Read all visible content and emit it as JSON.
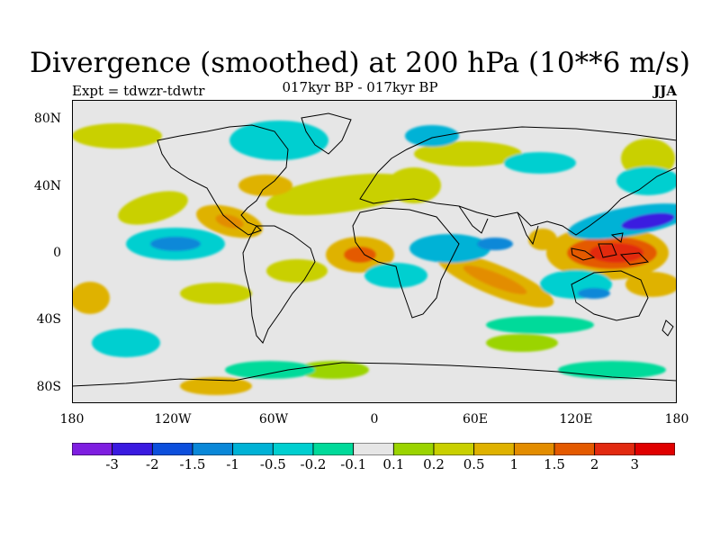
{
  "title": "Divergence (smoothed) at 200 hPa (10**6 m/s)",
  "subtitle": "017kyr BP - 017kyr BP",
  "experiment_label": "Expt = tdwzr-tdwtr",
  "season": "JJA",
  "latitude_labels": [
    "80N",
    "40N",
    "0",
    "40S",
    "80S"
  ],
  "longitude_labels": [
    "180",
    "120W",
    "60W",
    "0",
    "60E",
    "120E",
    "180"
  ],
  "colorbar": {
    "labels": [
      "-3",
      "-2",
      "-1.5",
      "-1",
      "-0.5",
      "-0.2",
      "-0.1",
      "0.1",
      "0.2",
      "0.5",
      "1",
      "1.5",
      "2",
      "3"
    ],
    "colors": [
      "#7e1ee0",
      "#3a1ae0",
      "#0d4fdc",
      "#0a88d8",
      "#00b2d6",
      "#00cfd0",
      "#00da9a",
      "#e6e6e6",
      "#9bd400",
      "#c9d000",
      "#dfb200",
      "#e38d00",
      "#e45a00",
      "#e22a10",
      "#e00000"
    ]
  },
  "map_background_color": "#e6e6e6"
}
